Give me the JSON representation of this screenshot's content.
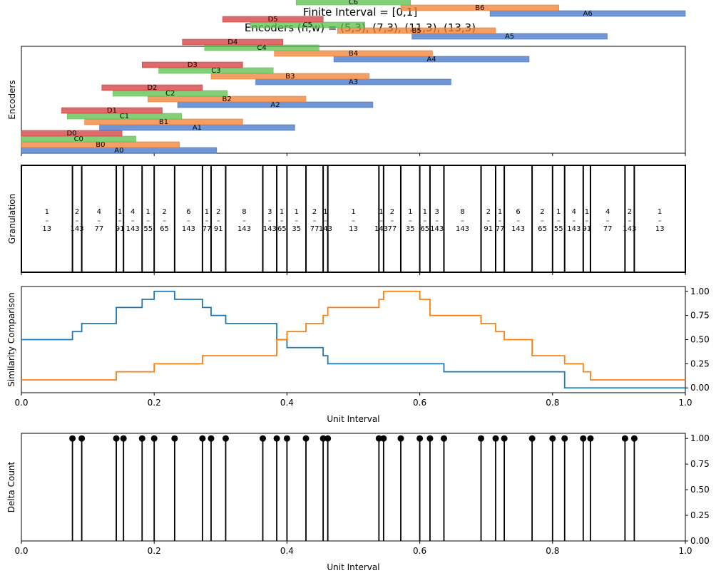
{
  "title_line1": "Finite Interval = [0,1]",
  "title_line2": "Encoders (n,w) = (5,3), (7,3), (11,3), (13,3)",
  "colors": {
    "A": "#4472c4",
    "B": "#ed7d31",
    "C": "#5cbf4d",
    "D": "#d0393a",
    "line1": "#1f77b4",
    "line2": "#ff7f0e"
  },
  "chart_data": [
    {
      "type": "bar",
      "panel": "encoders",
      "ylabel": "Encoders",
      "xlim": [
        0,
        1
      ],
      "encoders": [
        {
          "prefix": "A",
          "n": 5,
          "w": 3,
          "count": 7
        },
        {
          "prefix": "B",
          "n": 7,
          "w": 3,
          "count": 9
        },
        {
          "prefix": "C",
          "n": 11,
          "w": 3,
          "count": 13
        },
        {
          "prefix": "D",
          "n": 13,
          "w": 3,
          "count": 15
        }
      ]
    },
    {
      "type": "table",
      "panel": "granulation",
      "ylabel": "Granulation",
      "xlim": [
        0,
        1
      ],
      "boundaries": [
        0.0769,
        0.0909,
        0.1429,
        0.1538,
        0.1818,
        0.2,
        0.2308,
        0.2727,
        0.2857,
        0.3077,
        0.3636,
        0.3846,
        0.4,
        0.4286,
        0.4545,
        0.4615,
        0.5385,
        0.5455,
        0.5714,
        0.6,
        0.6154,
        0.6364,
        0.6923,
        0.7143,
        0.7273,
        0.7692,
        0.8,
        0.8182,
        0.8462,
        0.8571,
        0.9091,
        0.9231
      ],
      "fractions": [
        [
          "1",
          "13"
        ],
        [
          "2",
          "143"
        ],
        [
          "4",
          "77"
        ],
        [
          "1",
          "91"
        ],
        [
          "4",
          "143"
        ],
        [
          "1",
          "55"
        ],
        [
          "2",
          "65"
        ],
        [
          "6",
          "143"
        ],
        [
          "1",
          "77"
        ],
        [
          "2",
          "91"
        ],
        [
          "8",
          "143"
        ],
        [
          "3",
          "143"
        ],
        [
          "1",
          "65"
        ],
        [
          "1",
          "35"
        ],
        [
          "2",
          "77"
        ],
        [
          "1",
          "143"
        ],
        [
          "1",
          "13"
        ],
        [
          "1",
          "143"
        ],
        [
          "2",
          "77"
        ],
        [
          "1",
          "35"
        ],
        [
          "1",
          "65"
        ],
        [
          "3",
          "143"
        ],
        [
          "8",
          "143"
        ],
        [
          "2",
          "91"
        ],
        [
          "1",
          "77"
        ],
        [
          "6",
          "143"
        ],
        [
          "2",
          "65"
        ],
        [
          "1",
          "55"
        ],
        [
          "4",
          "143"
        ],
        [
          "1",
          "91"
        ],
        [
          "4",
          "77"
        ],
        [
          "2",
          "143"
        ],
        [
          "1",
          "13"
        ]
      ]
    },
    {
      "type": "line",
      "panel": "similarity",
      "ylabel": "Similarity Comparison",
      "xlabel": "Unit Interval",
      "xlim": [
        0,
        1
      ],
      "ylim": [
        -0.05,
        1.05
      ],
      "xticks": [
        "0.0",
        "0.2",
        "0.4",
        "0.6",
        "0.8",
        "1.0"
      ],
      "yticks": [
        "0.00",
        "0.25",
        "0.50",
        "0.75",
        "1.00"
      ],
      "series": [
        {
          "values": [
            0.5,
            0.583,
            0.667,
            0.75,
            0.833,
            0.833,
            0.917,
            1.0,
            1.0,
            0.917,
            0.833,
            0.75,
            0.667,
            0.667,
            0.583,
            0.5,
            0.417,
            0.417,
            0.333,
            0.333,
            0.25,
            0.25,
            0.25,
            0.25,
            0.25,
            0.25,
            0.25,
            0.167,
            0.167,
            0.167,
            0.167,
            0.167,
            0.167,
            0.167,
            0.0,
            0.0,
            0.0,
            0.0,
            0.0,
            0.0
          ]
        },
        {
          "values": [
            0.083,
            0.083,
            0.083,
            0.083,
            0.167,
            0.167,
            0.167,
            0.25,
            0.25,
            0.25,
            0.333,
            0.333,
            0.333,
            0.333,
            0.417,
            0.5,
            0.583,
            0.667,
            0.75,
            0.833,
            0.833,
            0.917,
            1.0,
            1.0,
            0.917,
            0.833,
            0.75,
            0.75,
            0.667,
            0.583,
            0.5,
            0.417,
            0.333,
            0.333,
            0.25,
            0.167,
            0.083,
            0.083,
            0.083,
            0.083
          ]
        }
      ]
    },
    {
      "type": "scatter",
      "panel": "delta",
      "ylabel": "Delta Count",
      "xlabel": "Unit Interval",
      "xlim": [
        0,
        1
      ],
      "ylim": [
        0,
        1.05
      ],
      "xticks": [
        "0.0",
        "0.2",
        "0.4",
        "0.6",
        "0.8",
        "1.0"
      ],
      "yticks": [
        "0.00",
        "0.25",
        "0.50",
        "0.75",
        "1.00"
      ],
      "x": [
        0.0769,
        0.0909,
        0.1429,
        0.1538,
        0.1818,
        0.2,
        0.2308,
        0.2727,
        0.2857,
        0.3077,
        0.3636,
        0.3846,
        0.4,
        0.4286,
        0.4545,
        0.4615,
        0.5385,
        0.5455,
        0.5714,
        0.6,
        0.6154,
        0.6364,
        0.6923,
        0.7143,
        0.7273,
        0.7692,
        0.8,
        0.8182,
        0.8462,
        0.8571,
        0.9091,
        0.9231
      ],
      "y": 1.0
    }
  ]
}
